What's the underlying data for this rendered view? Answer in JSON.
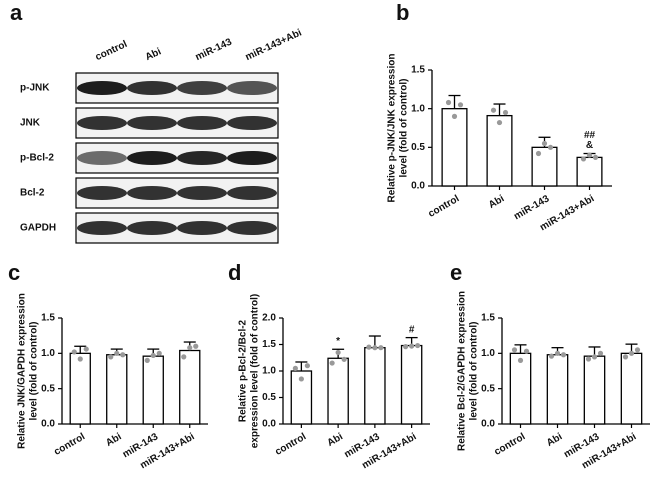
{
  "blot": {
    "panel_label": "a",
    "lanes": [
      "control",
      "Abi",
      "miR-143",
      "miR-143+Abi"
    ],
    "rows": [
      "p-JNK",
      "JNK",
      "p-Bcl-2",
      "Bcl-2",
      "GAPDH"
    ]
  },
  "chart_data": [
    {
      "type": "bar",
      "panel_label": "b",
      "ylabel": [
        "Relative p-JNK/JNK expression",
        "level (fold of control)"
      ],
      "categories": [
        "control",
        "Abi",
        "miR-143",
        "miR-143+Abi"
      ],
      "values": [
        1.0,
        0.91,
        0.5,
        0.37
      ],
      "errors": [
        0.17,
        0.15,
        0.13,
        0.05
      ],
      "points": [
        [
          1.08,
          0.9,
          1.05
        ],
        [
          0.98,
          0.82,
          0.95
        ],
        [
          0.42,
          0.55,
          0.5
        ],
        [
          0.35,
          0.4,
          0.37
        ]
      ],
      "bar_labels": [
        [],
        [],
        [],
        [
          "##",
          "&"
        ]
      ],
      "color": "#ffffff",
      "ylim": [
        0,
        1.5
      ],
      "yticks": [
        {
          "value": 0,
          "label": "0.0"
        },
        {
          "value": 0.5,
          "label": "0.5"
        },
        {
          "value": 1,
          "label": "1.0"
        },
        {
          "value": 1.5,
          "label": "1.5"
        }
      ]
    },
    {
      "type": "bar",
      "panel_label": "c",
      "ylabel": [
        "Relative JNK/GAPDH expression",
        "level (fold of control)"
      ],
      "categories": [
        "control",
        "Abi",
        "miR-143",
        "miR-143+Abi"
      ],
      "values": [
        1.0,
        0.98,
        0.96,
        1.04
      ],
      "errors": [
        0.1,
        0.08,
        0.1,
        0.12
      ],
      "points": [
        [
          1.02,
          0.92,
          1.06
        ],
        [
          0.95,
          1.0,
          0.98
        ],
        [
          0.9,
          0.97,
          1.0
        ],
        [
          0.95,
          1.08,
          1.1
        ]
      ],
      "bar_labels": [
        [],
        [],
        [],
        []
      ],
      "color": "#ffffff",
      "ylim": [
        0,
        1.5
      ],
      "yticks": [
        {
          "value": 0,
          "label": "0.0"
        },
        {
          "value": 0.5,
          "label": "0.5"
        },
        {
          "value": 1,
          "label": "1.0"
        },
        {
          "value": 1.5,
          "label": "1.5"
        }
      ]
    },
    {
      "type": "bar",
      "panel_label": "d",
      "ylabel": [
        "Relative p-Bcl-2/Bcl-2",
        "expression level (fold of control)"
      ],
      "categories": [
        "control",
        "Abi",
        "miR-143",
        "miR-143+Abi"
      ],
      "values": [
        1.0,
        1.24,
        1.44,
        1.48
      ],
      "errors": [
        0.17,
        0.17,
        0.22,
        0.15
      ],
      "points": [
        [
          1.05,
          0.85,
          1.1
        ],
        [
          1.15,
          1.35,
          1.22
        ],
        [
          1.45,
          1.44,
          1.44
        ],
        [
          1.46,
          1.47,
          1.48
        ]
      ],
      "bar_labels": [
        [],
        [
          "*"
        ],
        [],
        [
          "#"
        ]
      ],
      "color": "#ffffff",
      "ylim": [
        0,
        2
      ],
      "yticks": [
        {
          "value": 0,
          "label": "0.0"
        },
        {
          "value": 0.5,
          "label": "0.5"
        },
        {
          "value": 1,
          "label": "1.0"
        },
        {
          "value": 1.5,
          "label": "1.5"
        },
        {
          "value": 2,
          "label": "2.0"
        }
      ]
    },
    {
      "type": "bar",
      "panel_label": "e",
      "ylabel": [
        "Relative Bcl-2/GAPDH expression",
        "level (fold of control)"
      ],
      "categories": [
        "control",
        "Abi",
        "miR-143",
        "miR-143+Abi"
      ],
      "values": [
        1.0,
        0.98,
        0.96,
        1.0
      ],
      "errors": [
        0.12,
        0.1,
        0.13,
        0.13
      ],
      "points": [
        [
          1.05,
          0.9,
          1.03
        ],
        [
          0.96,
          1.0,
          0.98
        ],
        [
          0.92,
          0.95,
          1.0
        ],
        [
          0.95,
          1.0,
          1.05
        ]
      ],
      "bar_labels": [
        [],
        [],
        [],
        []
      ],
      "color": "#ffffff",
      "ylim": [
        0,
        1.5
      ],
      "yticks": [
        {
          "value": 0,
          "label": "0.0"
        },
        {
          "value": 0.5,
          "label": "0.5"
        },
        {
          "value": 1,
          "label": "1.0"
        },
        {
          "value": 1.5,
          "label": "1.5"
        }
      ]
    }
  ]
}
